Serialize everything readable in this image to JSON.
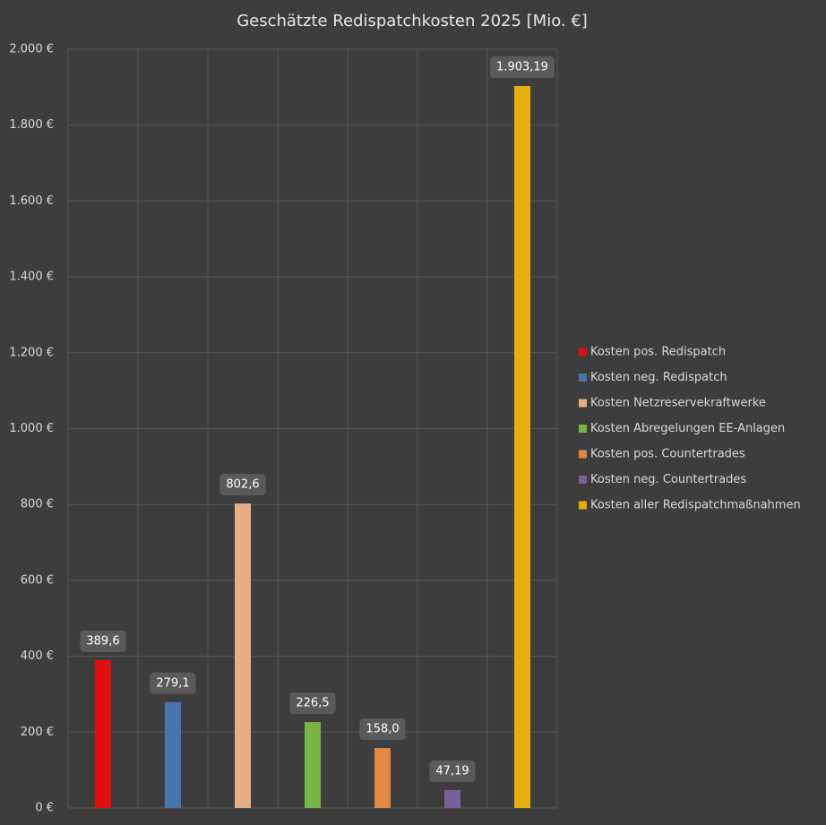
{
  "chart_data": {
    "type": "bar",
    "title": "Geschätzte Redispatchkosten 2025 [Mio. €]",
    "series": [
      {
        "name": "Kosten pos. Redispatch",
        "color": "#e00f0f",
        "values": [
          389.6
        ],
        "value_labels": [
          "389,6"
        ]
      },
      {
        "name": "Kosten neg. Redispatch",
        "color": "#4a74ad",
        "values": [
          279.1
        ],
        "value_labels": [
          "279,1"
        ]
      },
      {
        "name": "Kosten Netzreservekraftwerke",
        "color": "#e4ae88",
        "values": [
          802.6
        ],
        "value_labels": [
          "802,6"
        ]
      },
      {
        "name": "Kosten Abregelungen EE-Anlagen",
        "color": "#78b446",
        "values": [
          226.5
        ],
        "value_labels": [
          "226,5"
        ]
      },
      {
        "name": "Kosten pos. Countertrades",
        "color": "#e08a45",
        "values": [
          158.0
        ],
        "value_labels": [
          "158,0"
        ]
      },
      {
        "name": "Kosten neg. Countertrades",
        "color": "#7b5f9b",
        "values": [
          47.19
        ],
        "value_labels": [
          "47,19"
        ]
      },
      {
        "name": "Kosten aller Redispatchmaßnahmen",
        "color": "#e6ad0e",
        "values": [
          1903.19
        ],
        "value_labels": [
          "1.903,19"
        ]
      }
    ],
    "ylim": [
      0,
      2000
    ],
    "yticks": [
      {
        "value": 0,
        "label": "0 €"
      },
      {
        "value": 200,
        "label": "200 €"
      },
      {
        "value": 400,
        "label": "400 €"
      },
      {
        "value": 600,
        "label": "600 €"
      },
      {
        "value": 800,
        "label": "800 €"
      },
      {
        "value": 1000,
        "label": "1.000 €"
      },
      {
        "value": 1200,
        "label": "1.200 €"
      },
      {
        "value": 1400,
        "label": "1.400 €"
      },
      {
        "value": 1600,
        "label": "1.600 €"
      },
      {
        "value": 1800,
        "label": "1.800 €"
      },
      {
        "value": 2000,
        "label": "2.000 €"
      }
    ],
    "grid": true,
    "legend": "right"
  }
}
